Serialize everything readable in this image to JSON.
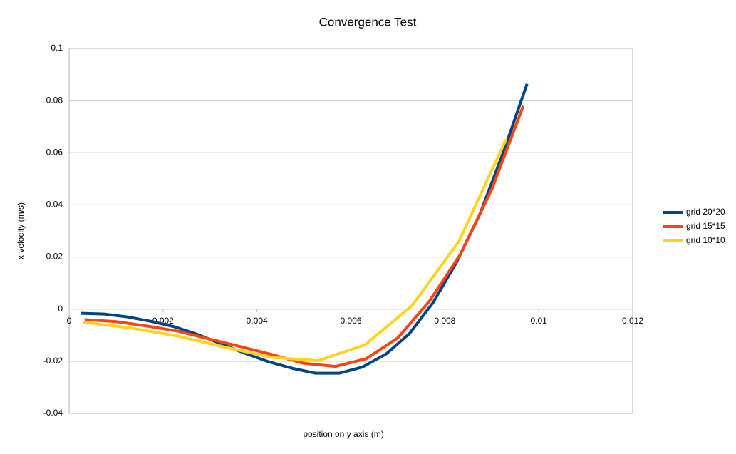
{
  "chart_data": {
    "type": "line",
    "title": "Convergence Test",
    "x_label": "position on y axis (m)",
    "y_label": "x velocity (m/s)",
    "xlim": [
      0,
      0.012
    ],
    "xticks": [
      0,
      0.002,
      0.004,
      0.006,
      0.008,
      0.01,
      0.012
    ],
    "ylim": [
      -0.04,
      0.1
    ],
    "yticks": [
      -0.04,
      -0.02,
      0,
      0.02,
      0.04,
      0.06,
      0.08,
      0.1
    ],
    "grid": true,
    "legend": "right",
    "series": [
      {
        "name": "grid 20*20",
        "color": "#004586",
        "x": [
          0.00025,
          0.00075,
          0.00125,
          0.00175,
          0.00225,
          0.00275,
          0.00325,
          0.00375,
          0.00425,
          0.00475,
          0.00525,
          0.00575,
          0.00625,
          0.00675,
          0.00725,
          0.00775,
          0.00825,
          0.00875,
          0.00925,
          0.00975
        ],
        "values": [
          -0.0016,
          -0.0019,
          -0.003,
          -0.0047,
          -0.0068,
          -0.0098,
          -0.0134,
          -0.017,
          -0.0202,
          -0.0227,
          -0.0246,
          -0.0246,
          -0.0222,
          -0.0172,
          -0.0093,
          0.0025,
          0.018,
          0.0366,
          0.0604,
          0.0864
        ]
      },
      {
        "name": "grid 15*15",
        "color": "#ff420e",
        "x": [
          0.00033,
          0.001,
          0.00167,
          0.00233,
          0.003,
          0.00367,
          0.00433,
          0.005,
          0.00567,
          0.00633,
          0.007,
          0.00767,
          0.00833,
          0.009,
          0.00967
        ],
        "values": [
          -0.004,
          -0.0048,
          -0.0065,
          -0.0085,
          -0.0115,
          -0.0145,
          -0.0175,
          -0.0208,
          -0.022,
          -0.019,
          -0.011,
          0.003,
          0.021,
          0.046,
          0.078
        ]
      },
      {
        "name": "grid 10*10",
        "color": "#ffd320",
        "x": [
          0.0003,
          0.0013,
          0.0023,
          0.0033,
          0.0043,
          0.0053,
          0.0063,
          0.0073,
          0.0083,
          0.0093
        ],
        "values": [
          -0.005,
          -0.0072,
          -0.0103,
          -0.0145,
          -0.0185,
          -0.0198,
          -0.0137,
          0.0013,
          0.026,
          0.065
        ]
      }
    ]
  }
}
